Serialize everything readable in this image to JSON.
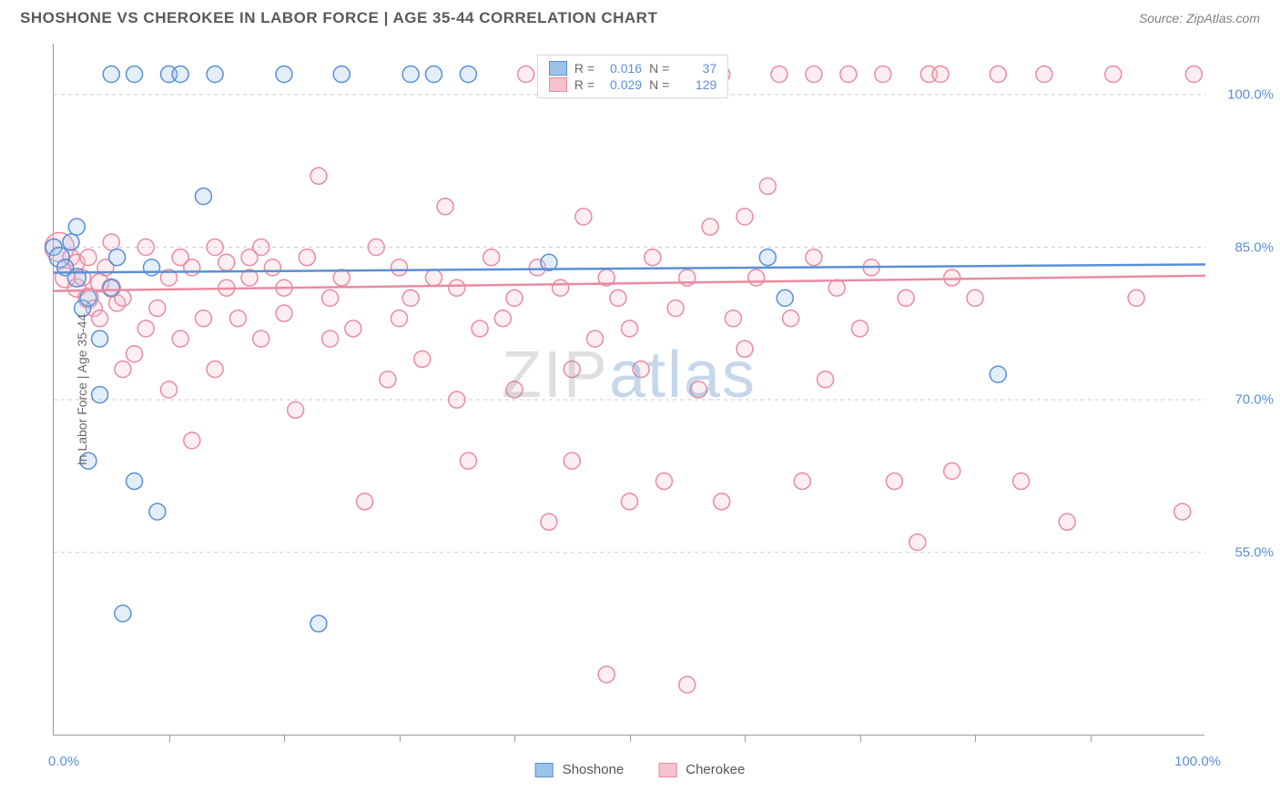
{
  "title": "SHOSHONE VS CHEROKEE IN LABOR FORCE | AGE 35-44 CORRELATION CHART",
  "source": "Source: ZipAtlas.com",
  "y_axis_label": "In Labor Force | Age 35-44",
  "x_range": [
    0,
    100
  ],
  "y_range": [
    37,
    105
  ],
  "x_bound_labels": {
    "low": "0.0%",
    "high": "100.0%"
  },
  "x_tick_positions": [
    10,
    20,
    30,
    40,
    50,
    60,
    70,
    80,
    90
  ],
  "y_gridlines": [
    {
      "value": 55,
      "label": "55.0%"
    },
    {
      "value": 70,
      "label": "70.0%"
    },
    {
      "value": 85,
      "label": "85.0%"
    },
    {
      "value": 100,
      "label": "100.0%"
    }
  ],
  "series": [
    {
      "name": "Shoshone",
      "color_fill": "#9cc2ea",
      "color_stroke": "#5b8fd6",
      "r_value": "0.016",
      "n_value": "37",
      "regression": {
        "y_at_x0": 82.5,
        "y_at_x100": 83.3
      },
      "points": [
        {
          "x": 0,
          "y": 85,
          "r": 9
        },
        {
          "x": 0.5,
          "y": 84,
          "r": 11
        },
        {
          "x": 1,
          "y": 83,
          "r": 9
        },
        {
          "x": 1.5,
          "y": 85.5,
          "r": 9
        },
        {
          "x": 2,
          "y": 82,
          "r": 10
        },
        {
          "x": 2,
          "y": 87,
          "r": 9
        },
        {
          "x": 2.5,
          "y": 79,
          "r": 9
        },
        {
          "x": 3,
          "y": 80,
          "r": 9
        },
        {
          "x": 3,
          "y": 64,
          "r": 9
        },
        {
          "x": 4,
          "y": 76,
          "r": 9
        },
        {
          "x": 4,
          "y": 70.5,
          "r": 9
        },
        {
          "x": 5,
          "y": 102,
          "r": 9
        },
        {
          "x": 5,
          "y": 81,
          "r": 9
        },
        {
          "x": 5.5,
          "y": 84,
          "r": 9
        },
        {
          "x": 6,
          "y": 49,
          "r": 9
        },
        {
          "x": 7,
          "y": 62,
          "r": 9
        },
        {
          "x": 7,
          "y": 102,
          "r": 9
        },
        {
          "x": 8.5,
          "y": 83,
          "r": 9
        },
        {
          "x": 9,
          "y": 59,
          "r": 9
        },
        {
          "x": 10,
          "y": 102,
          "r": 9
        },
        {
          "x": 11,
          "y": 102,
          "r": 9
        },
        {
          "x": 13,
          "y": 90,
          "r": 9
        },
        {
          "x": 14,
          "y": 102,
          "r": 9
        },
        {
          "x": 20,
          "y": 102,
          "r": 9
        },
        {
          "x": 23,
          "y": 48,
          "r": 9
        },
        {
          "x": 25,
          "y": 102,
          "r": 9
        },
        {
          "x": 31,
          "y": 102,
          "r": 9
        },
        {
          "x": 33,
          "y": 102,
          "r": 9
        },
        {
          "x": 36,
          "y": 102,
          "r": 9
        },
        {
          "x": 43,
          "y": 83.5,
          "r": 9
        },
        {
          "x": 62,
          "y": 84,
          "r": 9
        },
        {
          "x": 63.5,
          "y": 80,
          "r": 9
        },
        {
          "x": 82,
          "y": 72.5,
          "r": 9
        }
      ]
    },
    {
      "name": "Cherokee",
      "color_fill": "#f4c3ce",
      "color_stroke": "#e98ba2",
      "r_value": "0.029",
      "n_value": "129",
      "regression": {
        "y_at_x0": 80.7,
        "y_at_x100": 82.2
      },
      "points": [
        {
          "x": 0.5,
          "y": 85,
          "r": 16
        },
        {
          "x": 1,
          "y": 82,
          "r": 11
        },
        {
          "x": 1.5,
          "y": 84,
          "r": 9
        },
        {
          "x": 2,
          "y": 81,
          "r": 10
        },
        {
          "x": 2,
          "y": 83.5,
          "r": 9
        },
        {
          "x": 2.5,
          "y": 82,
          "r": 9
        },
        {
          "x": 3,
          "y": 80,
          "r": 11
        },
        {
          "x": 3,
          "y": 84,
          "r": 9
        },
        {
          "x": 3.5,
          "y": 79,
          "r": 9
        },
        {
          "x": 4,
          "y": 81.5,
          "r": 10
        },
        {
          "x": 4,
          "y": 78,
          "r": 9
        },
        {
          "x": 4.5,
          "y": 83,
          "r": 9
        },
        {
          "x": 5,
          "y": 81,
          "r": 10
        },
        {
          "x": 5,
          "y": 85.5,
          "r": 9
        },
        {
          "x": 5.5,
          "y": 79.5,
          "r": 9
        },
        {
          "x": 6,
          "y": 80,
          "r": 9
        },
        {
          "x": 6,
          "y": 73,
          "r": 9
        },
        {
          "x": 7,
          "y": 74.5,
          "r": 9
        },
        {
          "x": 8,
          "y": 85,
          "r": 9
        },
        {
          "x": 8,
          "y": 77,
          "r": 9
        },
        {
          "x": 9,
          "y": 79,
          "r": 9
        },
        {
          "x": 10,
          "y": 82,
          "r": 9
        },
        {
          "x": 10,
          "y": 71,
          "r": 9
        },
        {
          "x": 11,
          "y": 84,
          "r": 9
        },
        {
          "x": 11,
          "y": 76,
          "r": 9
        },
        {
          "x": 12,
          "y": 83,
          "r": 9
        },
        {
          "x": 12,
          "y": 66,
          "r": 9
        },
        {
          "x": 13,
          "y": 78,
          "r": 9
        },
        {
          "x": 14,
          "y": 85,
          "r": 9
        },
        {
          "x": 14,
          "y": 73,
          "r": 9
        },
        {
          "x": 15,
          "y": 81,
          "r": 9
        },
        {
          "x": 15,
          "y": 83.5,
          "r": 9
        },
        {
          "x": 16,
          "y": 78,
          "r": 9
        },
        {
          "x": 17,
          "y": 84,
          "r": 9
        },
        {
          "x": 17,
          "y": 82,
          "r": 9
        },
        {
          "x": 18,
          "y": 85,
          "r": 9
        },
        {
          "x": 18,
          "y": 76,
          "r": 9
        },
        {
          "x": 19,
          "y": 83,
          "r": 9
        },
        {
          "x": 20,
          "y": 81,
          "r": 9
        },
        {
          "x": 20,
          "y": 78.5,
          "r": 9
        },
        {
          "x": 21,
          "y": 69,
          "r": 9
        },
        {
          "x": 22,
          "y": 84,
          "r": 9
        },
        {
          "x": 23,
          "y": 92,
          "r": 9
        },
        {
          "x": 24,
          "y": 80,
          "r": 9
        },
        {
          "x": 24,
          "y": 76,
          "r": 9
        },
        {
          "x": 25,
          "y": 82,
          "r": 9
        },
        {
          "x": 26,
          "y": 77,
          "r": 9
        },
        {
          "x": 27,
          "y": 60,
          "r": 9
        },
        {
          "x": 28,
          "y": 85,
          "r": 9
        },
        {
          "x": 29,
          "y": 72,
          "r": 9
        },
        {
          "x": 30,
          "y": 83,
          "r": 9
        },
        {
          "x": 30,
          "y": 78,
          "r": 9
        },
        {
          "x": 31,
          "y": 80,
          "r": 9
        },
        {
          "x": 32,
          "y": 74,
          "r": 9
        },
        {
          "x": 33,
          "y": 82,
          "r": 9
        },
        {
          "x": 34,
          "y": 89,
          "r": 9
        },
        {
          "x": 35,
          "y": 81,
          "r": 9
        },
        {
          "x": 35,
          "y": 70,
          "r": 9
        },
        {
          "x": 36,
          "y": 64,
          "r": 9
        },
        {
          "x": 37,
          "y": 77,
          "r": 9
        },
        {
          "x": 38,
          "y": 84,
          "r": 9
        },
        {
          "x": 39,
          "y": 78,
          "r": 9
        },
        {
          "x": 40,
          "y": 71,
          "r": 9
        },
        {
          "x": 40,
          "y": 80,
          "r": 9
        },
        {
          "x": 41,
          "y": 102,
          "r": 9
        },
        {
          "x": 42,
          "y": 83,
          "r": 9
        },
        {
          "x": 43,
          "y": 58,
          "r": 9
        },
        {
          "x": 44,
          "y": 81,
          "r": 9
        },
        {
          "x": 45,
          "y": 73,
          "r": 9
        },
        {
          "x": 45,
          "y": 64,
          "r": 9
        },
        {
          "x": 46,
          "y": 88,
          "r": 9
        },
        {
          "x": 47,
          "y": 76,
          "r": 9
        },
        {
          "x": 48,
          "y": 82,
          "r": 9
        },
        {
          "x": 48,
          "y": 43,
          "r": 9
        },
        {
          "x": 49,
          "y": 80,
          "r": 9
        },
        {
          "x": 50,
          "y": 60,
          "r": 9
        },
        {
          "x": 50,
          "y": 77,
          "r": 9
        },
        {
          "x": 51,
          "y": 73,
          "r": 9
        },
        {
          "x": 52,
          "y": 84,
          "r": 9
        },
        {
          "x": 53,
          "y": 62,
          "r": 9
        },
        {
          "x": 54,
          "y": 79,
          "r": 9
        },
        {
          "x": 55,
          "y": 42,
          "r": 9
        },
        {
          "x": 55,
          "y": 82,
          "r": 9
        },
        {
          "x": 56,
          "y": 71,
          "r": 9
        },
        {
          "x": 57,
          "y": 87,
          "r": 9
        },
        {
          "x": 58,
          "y": 60,
          "r": 9
        },
        {
          "x": 58,
          "y": 102,
          "r": 9
        },
        {
          "x": 59,
          "y": 78,
          "r": 9
        },
        {
          "x": 60,
          "y": 75,
          "r": 9
        },
        {
          "x": 60,
          "y": 88,
          "r": 9
        },
        {
          "x": 61,
          "y": 82,
          "r": 9
        },
        {
          "x": 62,
          "y": 91,
          "r": 9
        },
        {
          "x": 63,
          "y": 102,
          "r": 9
        },
        {
          "x": 64,
          "y": 78,
          "r": 9
        },
        {
          "x": 65,
          "y": 62,
          "r": 9
        },
        {
          "x": 66,
          "y": 84,
          "r": 9
        },
        {
          "x": 66,
          "y": 102,
          "r": 9
        },
        {
          "x": 67,
          "y": 72,
          "r": 9
        },
        {
          "x": 68,
          "y": 81,
          "r": 9
        },
        {
          "x": 69,
          "y": 102,
          "r": 9
        },
        {
          "x": 70,
          "y": 77,
          "r": 9
        },
        {
          "x": 71,
          "y": 83,
          "r": 9
        },
        {
          "x": 72,
          "y": 102,
          "r": 9
        },
        {
          "x": 73,
          "y": 62,
          "r": 9
        },
        {
          "x": 74,
          "y": 80,
          "r": 9
        },
        {
          "x": 75,
          "y": 56,
          "r": 9
        },
        {
          "x": 76,
          "y": 102,
          "r": 9
        },
        {
          "x": 77,
          "y": 102,
          "r": 9
        },
        {
          "x": 78,
          "y": 82,
          "r": 9
        },
        {
          "x": 78,
          "y": 63,
          "r": 9
        },
        {
          "x": 80,
          "y": 80,
          "r": 9
        },
        {
          "x": 82,
          "y": 102,
          "r": 9
        },
        {
          "x": 84,
          "y": 62,
          "r": 9
        },
        {
          "x": 86,
          "y": 102,
          "r": 9
        },
        {
          "x": 88,
          "y": 58,
          "r": 9
        },
        {
          "x": 92,
          "y": 102,
          "r": 9
        },
        {
          "x": 94,
          "y": 80,
          "r": 9
        },
        {
          "x": 98,
          "y": 59,
          "r": 9
        },
        {
          "x": 99,
          "y": 102,
          "r": 9
        }
      ]
    }
  ],
  "stats_legend_labels": {
    "r": "R =",
    "n": "N ="
  },
  "watermark": {
    "part1": "ZIP",
    "part2": "atlas"
  }
}
